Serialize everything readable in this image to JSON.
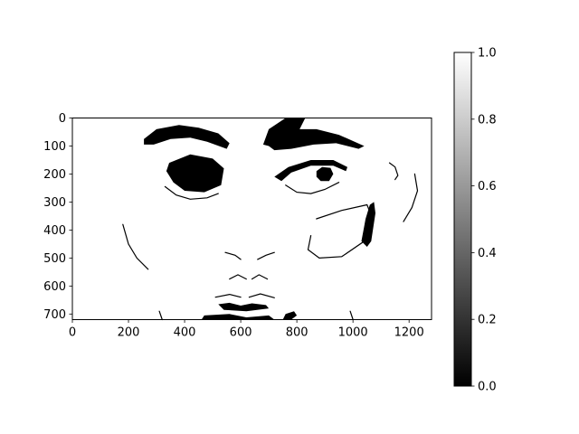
{
  "chart_data": {
    "type": "heatmap",
    "title": "",
    "xlabel": "",
    "ylabel": "",
    "colormap": "gray",
    "image_size": [
      1280,
      720
    ],
    "xlim": [
      0,
      1280
    ],
    "ylim": [
      720,
      0
    ],
    "x_ticks": [
      0,
      200,
      400,
      600,
      800,
      1000,
      1200
    ],
    "x_tick_labels": [
      "0",
      "200",
      "400",
      "600",
      "800",
      "1000",
      "1200"
    ],
    "y_ticks": [
      0,
      100,
      200,
      300,
      400,
      500,
      600,
      700
    ],
    "y_tick_labels": [
      "0",
      "100",
      "200",
      "300",
      "400",
      "500",
      "600",
      "700"
    ],
    "colorbar": {
      "range": [
        0.0,
        1.0
      ],
      "ticks": [
        0.0,
        0.2,
        0.4,
        0.6,
        0.8,
        1.0
      ],
      "tick_labels": [
        "0.0",
        "0.2",
        "0.4",
        "0.6",
        "0.8",
        "1.0"
      ]
    },
    "image_content": "binary (black/white) thresholded photo of a face",
    "dark_regions": [
      {
        "name": "left-eyebrow",
        "points": [
          [
            255,
            75
          ],
          [
            300,
            40
          ],
          [
            380,
            25
          ],
          [
            450,
            35
          ],
          [
            520,
            55
          ],
          [
            560,
            90
          ],
          [
            550,
            110
          ],
          [
            480,
            85
          ],
          [
            420,
            70
          ],
          [
            350,
            75
          ],
          [
            290,
            95
          ],
          [
            255,
            95
          ]
        ]
      },
      {
        "name": "left-eye",
        "points": [
          [
            345,
            160
          ],
          [
            420,
            130
          ],
          [
            500,
            145
          ],
          [
            540,
            180
          ],
          [
            530,
            240
          ],
          [
            470,
            265
          ],
          [
            400,
            260
          ],
          [
            360,
            230
          ],
          [
            335,
            190
          ]
        ]
      },
      {
        "name": "right-eyebrow",
        "points": [
          [
            680,
            95
          ],
          [
            700,
            40
          ],
          [
            760,
            0
          ],
          [
            830,
            0
          ],
          [
            810,
            40
          ],
          [
            870,
            40
          ],
          [
            950,
            60
          ],
          [
            1040,
            100
          ],
          [
            1020,
            110
          ],
          [
            940,
            90
          ],
          [
            860,
            95
          ],
          [
            780,
            110
          ],
          [
            720,
            115
          ],
          [
            700,
            100
          ]
        ]
      },
      {
        "name": "right-eye-lid",
        "points": [
          [
            720,
            210
          ],
          [
            770,
            175
          ],
          [
            850,
            150
          ],
          [
            930,
            150
          ],
          [
            980,
            175
          ],
          [
            975,
            190
          ],
          [
            930,
            170
          ],
          [
            850,
            170
          ],
          [
            780,
            195
          ],
          [
            745,
            225
          ]
        ]
      },
      {
        "name": "right-eye-iris",
        "points": [
          [
            870,
            190
          ],
          [
            890,
            175
          ],
          [
            920,
            178
          ],
          [
            930,
            200
          ],
          [
            915,
            225
          ],
          [
            885,
            225
          ],
          [
            870,
            210
          ]
        ]
      },
      {
        "name": "cheek-shadow",
        "points": [
          [
            1060,
            310
          ],
          [
            1075,
            300
          ],
          [
            1080,
            340
          ],
          [
            1065,
            440
          ],
          [
            1050,
            460
          ],
          [
            1030,
            440
          ],
          [
            1045,
            360
          ]
        ]
      },
      {
        "name": "mouth-line",
        "points": [
          [
            520,
            665
          ],
          [
            560,
            660
          ],
          [
            600,
            670
          ],
          [
            640,
            662
          ],
          [
            690,
            668
          ],
          [
            700,
            680
          ],
          [
            620,
            690
          ],
          [
            540,
            685
          ]
        ]
      },
      {
        "name": "bottom-left-dark",
        "points": [
          [
            470,
            705
          ],
          [
            560,
            700
          ],
          [
            620,
            712
          ],
          [
            700,
            705
          ],
          [
            720,
            720
          ],
          [
            460,
            720
          ]
        ]
      },
      {
        "name": "bottom-right-dark",
        "points": [
          [
            760,
            700
          ],
          [
            790,
            690
          ],
          [
            800,
            705
          ],
          [
            780,
            720
          ],
          [
            750,
            720
          ]
        ]
      }
    ],
    "dark_lines": [
      {
        "name": "left-nostril-arc",
        "points": [
          [
            560,
            575
          ],
          [
            590,
            560
          ],
          [
            620,
            575
          ]
        ]
      },
      {
        "name": "right-nostril-arc",
        "points": [
          [
            640,
            575
          ],
          [
            665,
            560
          ],
          [
            695,
            575
          ]
        ]
      },
      {
        "name": "nose-left",
        "points": [
          [
            545,
            480
          ],
          [
            580,
            490
          ],
          [
            600,
            505
          ]
        ]
      },
      {
        "name": "nose-right",
        "points": [
          [
            660,
            505
          ],
          [
            690,
            490
          ],
          [
            720,
            480
          ]
        ]
      },
      {
        "name": "upper-lip-left",
        "points": [
          [
            510,
            640
          ],
          [
            560,
            630
          ],
          [
            600,
            640
          ]
        ]
      },
      {
        "name": "upper-lip-right",
        "points": [
          [
            630,
            640
          ],
          [
            670,
            628
          ],
          [
            720,
            642
          ]
        ]
      },
      {
        "name": "right-cheek-contour",
        "points": [
          [
            870,
            360
          ],
          [
            960,
            330
          ],
          [
            1050,
            310
          ],
          [
            1070,
            360
          ],
          [
            1040,
            440
          ],
          [
            960,
            495
          ],
          [
            880,
            500
          ],
          [
            840,
            470
          ],
          [
            850,
            420
          ]
        ]
      },
      {
        "name": "face-left-contour",
        "points": [
          [
            180,
            380
          ],
          [
            200,
            450
          ],
          [
            230,
            500
          ],
          [
            270,
            540
          ]
        ]
      },
      {
        "name": "face-right-contour",
        "points": [
          [
            1220,
            200
          ],
          [
            1230,
            260
          ],
          [
            1210,
            320
          ],
          [
            1180,
            370
          ]
        ]
      },
      {
        "name": "left-lower-lash",
        "points": [
          [
            330,
            245
          ],
          [
            370,
            275
          ],
          [
            420,
            290
          ],
          [
            480,
            285
          ],
          [
            520,
            270
          ]
        ]
      },
      {
        "name": "right-lower-lash",
        "points": [
          [
            760,
            240
          ],
          [
            800,
            265
          ],
          [
            850,
            270
          ],
          [
            900,
            255
          ],
          [
            950,
            230
          ]
        ]
      },
      {
        "name": "right-outer-brow-mark",
        "points": [
          [
            1130,
            160
          ],
          [
            1150,
            175
          ],
          [
            1160,
            205
          ],
          [
            1150,
            220
          ]
        ]
      },
      {
        "name": "chin-left",
        "points": [
          [
            310,
            690
          ],
          [
            320,
            720
          ]
        ]
      },
      {
        "name": "chin-right",
        "points": [
          [
            990,
            690
          ],
          [
            1000,
            720
          ]
        ]
      }
    ]
  }
}
